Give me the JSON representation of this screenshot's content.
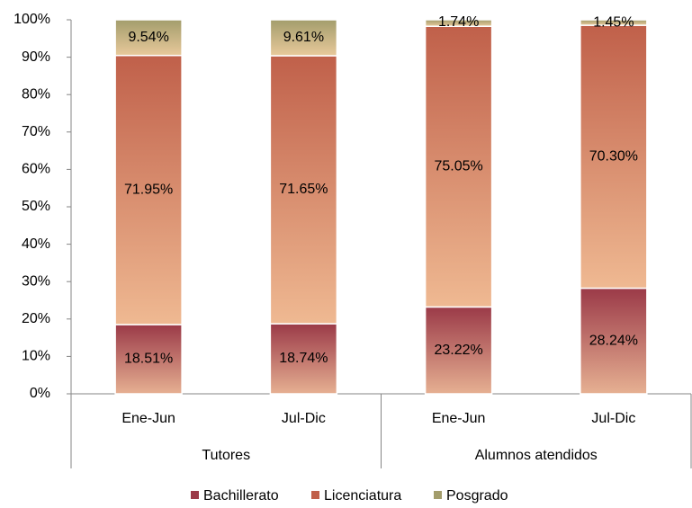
{
  "chart_data": {
    "type": "stacked_bar",
    "categories": [
      "Ene-Jun",
      "Jul-Dic",
      "Ene-Jun",
      "Jul-Dic"
    ],
    "groups": [
      {
        "label": "Tutores",
        "size": 2
      },
      {
        "label": "Alumnos atendidos",
        "size": 2
      }
    ],
    "series": [
      {
        "name": "Bachillerato",
        "color": "#9b3a48",
        "values": [
          18.51,
          18.74,
          23.22,
          28.24
        ],
        "value_labels": [
          "18.51%",
          "18.74%",
          "23.22%",
          "28.24%"
        ]
      },
      {
        "name": "Licenciatura",
        "color": "#c0604a",
        "values": [
          71.95,
          71.65,
          75.05,
          70.3
        ],
        "value_labels": [
          "71.95%",
          "71.65%",
          "75.05%",
          "70.30%"
        ]
      },
      {
        "name": "Posgrado",
        "color": "#a39d6c",
        "values": [
          9.54,
          9.61,
          1.74,
          1.45
        ],
        "value_labels": [
          "9.54%",
          "9.61%",
          "1.74%",
          "1.45%"
        ]
      }
    ],
    "ylim": [
      0,
      100
    ],
    "yticks": [
      {
        "value": 0,
        "label": "0%"
      },
      {
        "value": 10,
        "label": "10%"
      },
      {
        "value": 20,
        "label": "20%"
      },
      {
        "value": 30,
        "label": "30%"
      },
      {
        "value": 40,
        "label": "40%"
      },
      {
        "value": 50,
        "label": "50%"
      },
      {
        "value": 60,
        "label": "60%"
      },
      {
        "value": 70,
        "label": "70%"
      },
      {
        "value": 80,
        "label": "80%"
      },
      {
        "value": 90,
        "label": "90%"
      },
      {
        "value": 100,
        "label": "100%"
      }
    ],
    "legend": "bottom"
  }
}
